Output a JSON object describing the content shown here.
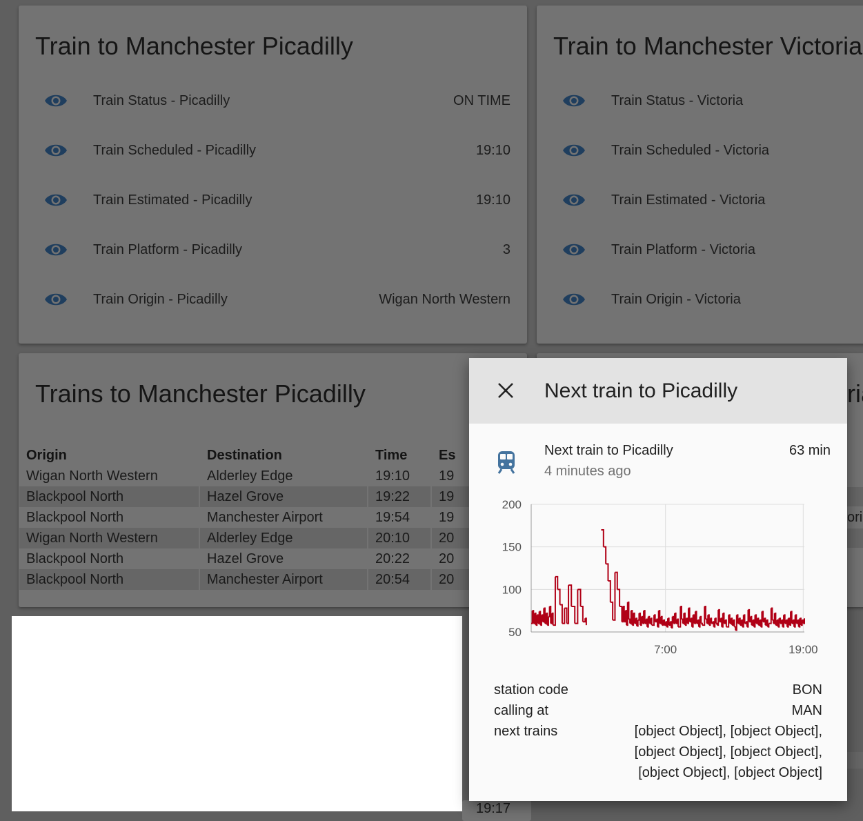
{
  "picadilly_card": {
    "title": "Train to Manchester Picadilly",
    "rows": [
      {
        "label": "Train Status - Picadilly",
        "value": "ON TIME",
        "icon": "eye-icon"
      },
      {
        "label": "Train Scheduled - Picadilly",
        "value": "19:10",
        "icon": "eye-icon"
      },
      {
        "label": "Train Estimated - Picadilly",
        "value": "19:10",
        "icon": "eye-icon"
      },
      {
        "label": "Train Platform - Picadilly",
        "value": "3",
        "icon": "eye-icon"
      },
      {
        "label": "Train Origin - Picadilly",
        "value": "Wigan North Western",
        "icon": "eye-icon"
      }
    ]
  },
  "victoria_card": {
    "title": "Train to Manchester Victoria",
    "rows": [
      {
        "label": "Train Status - Victoria",
        "icon": "eye-icon"
      },
      {
        "label": "Train Scheduled - Victoria",
        "icon": "eye-icon"
      },
      {
        "label": "Train Estimated - Victoria",
        "icon": "eye-icon"
      },
      {
        "label": "Train Platform - Victoria",
        "icon": "eye-icon"
      },
      {
        "label": "Train Origin - Victoria",
        "icon": "eye-icon"
      }
    ]
  },
  "trains_card": {
    "title": "Trains to Manchester Picadilly",
    "headers": [
      "Origin",
      "Destination",
      "Time",
      "Es"
    ],
    "rows": [
      [
        "Wigan North Western",
        "Alderley Edge",
        "19:10",
        "19"
      ],
      [
        "Blackpool North",
        "Hazel Grove",
        "19:22",
        "19"
      ],
      [
        "Blackpool North",
        "Manchester Airport",
        "19:54",
        "19"
      ],
      [
        "Wigan North Western",
        "Alderley Edge",
        "20:10",
        "20"
      ],
      [
        "Blackpool North",
        "Hazel Grove",
        "20:22",
        "20"
      ],
      [
        "Blackpool North",
        "Manchester Airport",
        "20:54",
        "20"
      ]
    ]
  },
  "background_partials": {
    "right_card_title_fragment": "ria",
    "right_table_fragment": "ori",
    "bottom_time_fragment": "19:17"
  },
  "dialog": {
    "title": "Next train to Picadilly",
    "close_icon": "close-icon",
    "entity": {
      "icon": "train-icon",
      "name": "Next train to Picadilly",
      "last_changed": "4 minutes ago",
      "state": "63 min"
    },
    "attributes": [
      {
        "name": "station code",
        "value": [
          "BON"
        ]
      },
      {
        "name": "calling at",
        "value": [
          "MAN"
        ]
      },
      {
        "name": "next trains",
        "value": [
          "[object Object], [object Object],",
          "[object Object], [object Object],",
          "[object Object], [object Object]"
        ]
      }
    ],
    "colors": {
      "line": "#b00016",
      "header_bg": "#e3e3e3",
      "icon": "#44739e"
    }
  },
  "chart_data": {
    "type": "line",
    "title": "",
    "xlabel": "",
    "ylabel": "",
    "ylim": [
      50,
      200
    ],
    "y_ticks": [
      "200",
      "150",
      "100",
      "50"
    ],
    "x_ticks": [
      "7:00",
      "19:00"
    ],
    "x_range_hours": [
      -4.7,
      19.1
    ],
    "grid": true,
    "series": [
      {
        "color": "#b00016",
        "points": [
          [
            -4.7,
            60
          ],
          [
            -4.6,
            75
          ],
          [
            -4.5,
            60
          ],
          [
            -4.4,
            72
          ],
          [
            -4.3,
            58
          ],
          [
            -4.2,
            70
          ],
          [
            -4.1,
            60
          ],
          [
            -4.0,
            74
          ],
          [
            -3.9,
            58
          ],
          [
            -3.8,
            70
          ],
          [
            -3.7,
            62
          ],
          [
            -3.6,
            78
          ],
          [
            -3.5,
            60
          ],
          [
            -3.4,
            72
          ],
          [
            -3.3,
            58
          ],
          [
            -3.2,
            68
          ],
          [
            -3.1,
            80
          ],
          [
            -3.0,
            60
          ],
          [
            -2.9,
            72
          ],
          [
            -2.8,
            58
          ],
          [
            -2.6,
            115
          ],
          [
            -2.4,
            100
          ],
          [
            -2.2,
            82
          ],
          [
            -2.0,
            60
          ],
          [
            -1.8,
            78
          ],
          [
            -1.6,
            60
          ],
          [
            -1.45,
            105
          ],
          [
            -1.2,
            80
          ],
          [
            -0.9,
            60
          ],
          [
            -0.65,
            100
          ],
          [
            -0.4,
            80
          ],
          [
            -0.2,
            62
          ],
          [
            0.0,
            66
          ],
          [
            0.1,
            58
          ],
          [
            1.4,
            170
          ],
          [
            1.6,
            150
          ],
          [
            1.8,
            130
          ],
          [
            2.0,
            110
          ],
          [
            2.2,
            85
          ],
          [
            2.4,
            64
          ],
          [
            2.6,
            120
          ],
          [
            2.8,
            100
          ],
          [
            3.0,
            80
          ],
          [
            3.2,
            62
          ],
          [
            3.3,
            80
          ],
          [
            3.4,
            62
          ],
          [
            3.5,
            75
          ],
          [
            3.6,
            58
          ],
          [
            3.7,
            85
          ],
          [
            3.8,
            65
          ],
          [
            3.9,
            60
          ],
          [
            4.0,
            75
          ],
          [
            4.1,
            58
          ],
          [
            4.2,
            72
          ],
          [
            4.3,
            60
          ],
          [
            4.4,
            66
          ],
          [
            4.5,
            57
          ],
          [
            4.6,
            64
          ],
          [
            4.7,
            72
          ],
          [
            4.8,
            58
          ],
          [
            4.9,
            68
          ],
          [
            5.0,
            60
          ],
          [
            5.1,
            75
          ],
          [
            5.2,
            60
          ],
          [
            5.3,
            65
          ],
          [
            5.4,
            56
          ],
          [
            5.5,
            68
          ],
          [
            5.6,
            60
          ],
          [
            5.7,
            66
          ],
          [
            5.8,
            58
          ],
          [
            6.0,
            70
          ],
          [
            6.1,
            62
          ],
          [
            6.2,
            65
          ],
          [
            6.3,
            56
          ],
          [
            6.4,
            75
          ],
          [
            6.5,
            60
          ],
          [
            6.6,
            68
          ],
          [
            6.7,
            58
          ],
          [
            6.8,
            64
          ],
          [
            6.9,
            58
          ],
          [
            7.0,
            62
          ],
          [
            7.1,
            56
          ],
          [
            7.2,
            66
          ],
          [
            7.3,
            58
          ],
          [
            7.4,
            62
          ],
          [
            7.5,
            55
          ],
          [
            7.6,
            68
          ],
          [
            7.7,
            60
          ],
          [
            7.8,
            72
          ],
          [
            7.9,
            60
          ],
          [
            8.0,
            65
          ],
          [
            8.1,
            56
          ],
          [
            8.3,
            80
          ],
          [
            8.4,
            65
          ],
          [
            8.5,
            60
          ],
          [
            8.6,
            72
          ],
          [
            8.7,
            58
          ],
          [
            8.8,
            66
          ],
          [
            8.9,
            60
          ],
          [
            9.0,
            78
          ],
          [
            9.1,
            62
          ],
          [
            9.2,
            66
          ],
          [
            9.3,
            56
          ],
          [
            9.4,
            70
          ],
          [
            9.5,
            60
          ],
          [
            9.6,
            74
          ],
          [
            9.7,
            60
          ],
          [
            9.8,
            64
          ],
          [
            9.9,
            56
          ],
          [
            10.0,
            68
          ],
          [
            10.1,
            60
          ],
          [
            10.2,
            58
          ],
          [
            10.4,
            80
          ],
          [
            10.5,
            65
          ],
          [
            10.6,
            60
          ],
          [
            10.7,
            70
          ],
          [
            10.8,
            58
          ],
          [
            10.9,
            66
          ],
          [
            11.0,
            60
          ],
          [
            11.1,
            62
          ],
          [
            11.2,
            56
          ],
          [
            11.3,
            66
          ],
          [
            11.4,
            60
          ],
          [
            11.5,
            58
          ],
          [
            11.6,
            76
          ],
          [
            11.7,
            62
          ],
          [
            11.8,
            66
          ],
          [
            11.9,
            56
          ],
          [
            12.0,
            72
          ],
          [
            12.1,
            60
          ],
          [
            12.2,
            64
          ],
          [
            12.3,
            56
          ],
          [
            12.5,
            70
          ],
          [
            12.6,
            60
          ],
          [
            12.7,
            66
          ],
          [
            12.8,
            58
          ],
          [
            12.9,
            64
          ],
          [
            13.0,
            56
          ],
          [
            13.1,
            52
          ],
          [
            13.2,
            70
          ],
          [
            13.3,
            60
          ],
          [
            13.4,
            66
          ],
          [
            13.5,
            58
          ],
          [
            13.6,
            64
          ],
          [
            13.7,
            56
          ],
          [
            13.8,
            70
          ],
          [
            13.9,
            60
          ],
          [
            14.0,
            62
          ],
          [
            14.1,
            56
          ],
          [
            14.2,
            76
          ],
          [
            14.3,
            62
          ],
          [
            14.4,
            68
          ],
          [
            14.5,
            58
          ],
          [
            14.6,
            64
          ],
          [
            14.7,
            56
          ],
          [
            14.8,
            70
          ],
          [
            14.9,
            60
          ],
          [
            15.0,
            66
          ],
          [
            15.1,
            58
          ],
          [
            15.2,
            64
          ],
          [
            15.3,
            56
          ],
          [
            15.4,
            74
          ],
          [
            15.5,
            62
          ],
          [
            15.6,
            66
          ],
          [
            15.7,
            58
          ],
          [
            15.8,
            64
          ],
          [
            15.9,
            56
          ],
          [
            16.0,
            60
          ],
          [
            16.2,
            78
          ],
          [
            16.3,
            64
          ],
          [
            16.4,
            60
          ],
          [
            16.5,
            72
          ],
          [
            16.6,
            58
          ],
          [
            16.7,
            64
          ],
          [
            16.8,
            56
          ],
          [
            16.9,
            66
          ],
          [
            17.0,
            60
          ],
          [
            17.1,
            64
          ],
          [
            17.2,
            56
          ],
          [
            17.3,
            70
          ],
          [
            17.4,
            60
          ],
          [
            17.5,
            64
          ],
          [
            17.6,
            56
          ],
          [
            17.7,
            66
          ],
          [
            17.8,
            58
          ],
          [
            17.9,
            74
          ],
          [
            18.0,
            60
          ],
          [
            18.1,
            64
          ],
          [
            18.2,
            56
          ],
          [
            18.3,
            70
          ],
          [
            18.4,
            60
          ],
          [
            18.5,
            64
          ],
          [
            18.6,
            56
          ],
          [
            18.7,
            66
          ],
          [
            18.8,
            58
          ],
          [
            18.9,
            64
          ],
          [
            19.0,
            60
          ],
          [
            19.1,
            66
          ]
        ]
      }
    ]
  }
}
